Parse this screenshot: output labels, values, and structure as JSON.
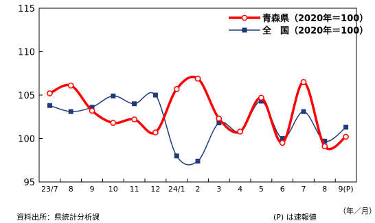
{
  "chart_data": {
    "type": "line",
    "categories": [
      "23/7",
      "8",
      "9",
      "10",
      "11",
      "12",
      "24/1",
      "2",
      "3",
      "4",
      "5",
      "6",
      "7",
      "8",
      "9(P)"
    ],
    "series": [
      {
        "name": "青森県（2020年＝100）",
        "color": "#ff0000",
        "values": [
          105.2,
          106.1,
          103.2,
          101.8,
          102.2,
          100.7,
          105.7,
          106.9,
          102.3,
          100.8,
          104.7,
          99.5,
          106.5,
          99.1,
          100.2
        ]
      },
      {
        "name": "全　国（2020年＝100）",
        "color": "#1f3a7a",
        "values": [
          103.8,
          103.1,
          103.6,
          104.9,
          104.0,
          105.0,
          98.0,
          97.4,
          101.8,
          100.8,
          104.3,
          100.0,
          103.1,
          99.7,
          101.3
        ]
      }
    ],
    "ylim": [
      95,
      115
    ],
    "yticks": [
      95,
      100,
      105,
      110,
      115
    ],
    "legend_position": "top-right",
    "grid": false
  },
  "notes": {
    "source": "資料出所：県統計分析課",
    "preliminary": "(P) は速報値",
    "unit": "（年／月）"
  }
}
